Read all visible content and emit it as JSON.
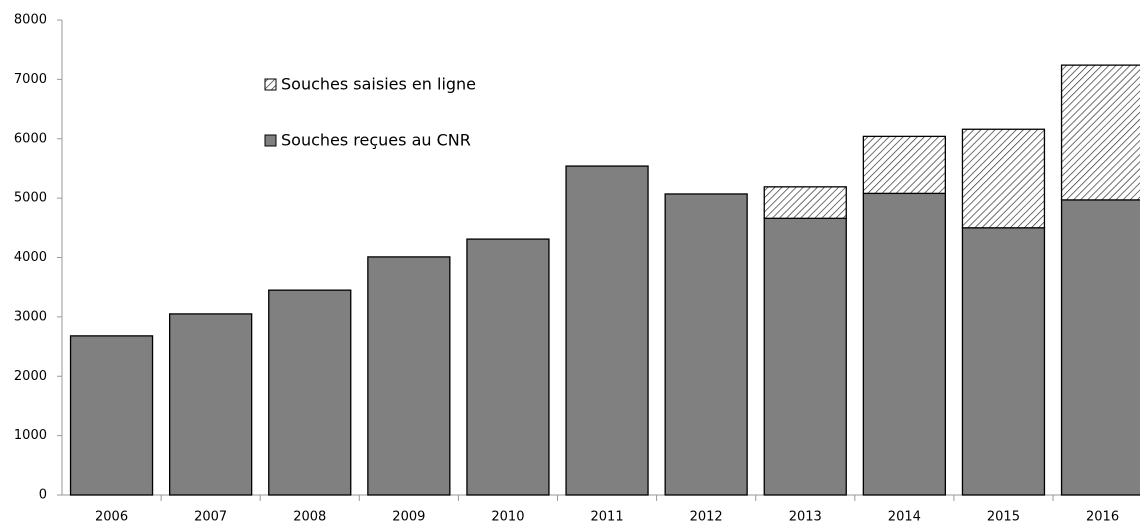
{
  "chart_data": {
    "type": "stacked_bar",
    "categories": [
      "2006",
      "2007",
      "2008",
      "2009",
      "2010",
      "2011",
      "2012",
      "2013",
      "2014",
      "2015",
      "2016"
    ],
    "series": [
      {
        "name": "Souches reçues au CNR",
        "color": "#808080",
        "values": [
          2680,
          3050,
          3450,
          4010,
          4310,
          5540,
          5070,
          4660,
          5080,
          4500,
          4970
        ]
      },
      {
        "name": "Souches saisies en ligne",
        "color": "hatched",
        "values": [
          null,
          null,
          null,
          null,
          null,
          null,
          null,
          530,
          960,
          1660,
          2270
        ]
      }
    ],
    "ylim": [
      0,
      8000
    ],
    "yticks": [
      0,
      1000,
      2000,
      3000,
      4000,
      5000,
      6000,
      7000,
      8000
    ],
    "grid": false
  }
}
